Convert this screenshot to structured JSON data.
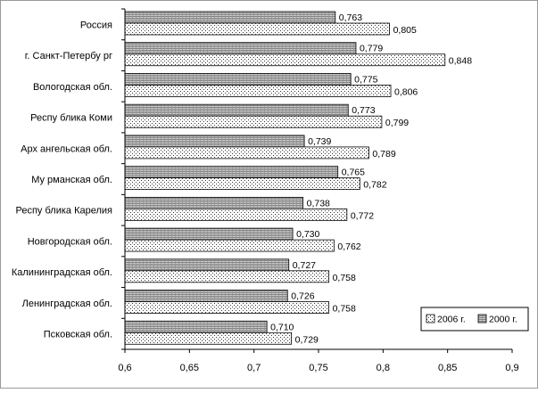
{
  "chart_data": {
    "type": "bar",
    "orientation": "horizontal",
    "categories": [
      "Россия",
      "г. Санкт-Петербу рг",
      "Вологодская обл.",
      "Респу блика Коми",
      "Арх ангельская обл.",
      "Му рманская обл.",
      "Респу блика Карелия",
      "Новгородская обл.",
      "Калининградская обл.",
      "Ленинградская обл.",
      "Псковская обл."
    ],
    "series": [
      {
        "name": "2000 г.",
        "pattern": "hatched-gray",
        "values": [
          0.763,
          0.779,
          0.775,
          0.773,
          0.739,
          0.765,
          0.738,
          0.73,
          0.727,
          0.726,
          0.71
        ],
        "labels": [
          "0,763",
          "0,779",
          "0,775",
          "0,773",
          "0,739",
          "0,765",
          "0,738",
          "0,730",
          "0,727",
          "0,726",
          "0,710"
        ]
      },
      {
        "name": "2006 г.",
        "pattern": "dotted",
        "values": [
          0.805,
          0.848,
          0.806,
          0.799,
          0.789,
          0.782,
          0.772,
          0.762,
          0.758,
          0.758,
          0.729
        ],
        "labels": [
          "0,805",
          "0,848",
          "0,806",
          "0,799",
          "0,789",
          "0,782",
          "0,772",
          "0,762",
          "0,758",
          "0,758",
          "0,729"
        ]
      }
    ],
    "xlim": [
      0.6,
      0.9
    ],
    "xticks": [
      0.6,
      0.65,
      0.7,
      0.75,
      0.8,
      0.85,
      0.9
    ],
    "xtick_labels": [
      "0,6",
      "0,65",
      "0,7",
      "0,75",
      "0,8",
      "0,85",
      "0,9"
    ],
    "title": "",
    "xlabel": "",
    "ylabel": "",
    "grid": false,
    "legend": {
      "placement": "bottom-right",
      "entries": [
        "2006 г.",
        "2000 г."
      ]
    },
    "colors": {
      "hatch_fill": "#d0d0d0",
      "hatch_line": "#555555",
      "dot_fill": "#ffffff",
      "dot_color": "#333333",
      "bar_border": "#000000"
    }
  }
}
